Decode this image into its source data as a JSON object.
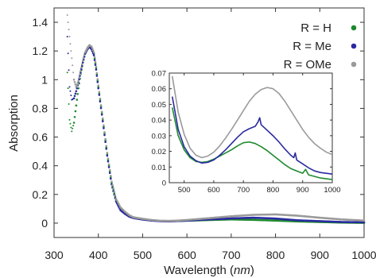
{
  "chart_data": {
    "type": "scatter",
    "xlabel": "Wavelength",
    "xlabel_unit": "nm",
    "ylabel": "Absorption",
    "xlim": [
      300,
      1000
    ],
    "ylim": [
      -0.1,
      1.5
    ],
    "xticks": [
      300,
      400,
      500,
      600,
      700,
      800,
      900,
      1000
    ],
    "yticks": [
      0,
      0.2,
      0.4,
      0.6,
      0.8,
      1,
      1.2,
      1.4
    ],
    "ytick_labels": [
      "0",
      "0.2",
      "0.4",
      "0.6",
      "0.8",
      "1",
      "1.2",
      "1.4"
    ],
    "legend_position": "top-right",
    "series": [
      {
        "name": "R = H",
        "color": "#1e8a2e",
        "x": [
          330,
          335,
          340,
          345,
          350,
          355,
          360,
          365,
          370,
          375,
          380,
          385,
          390,
          395,
          400,
          410,
          420,
          430,
          440,
          450,
          460,
          470,
          480,
          500,
          520,
          540,
          560,
          580,
          600,
          650,
          700,
          750,
          800,
          850,
          900,
          950,
          1000
        ],
        "y": [
          1.05,
          0.72,
          0.64,
          0.7,
          0.82,
          0.94,
          1.04,
          1.12,
          1.18,
          1.22,
          1.24,
          1.22,
          1.18,
          1.08,
          0.95,
          0.72,
          0.48,
          0.28,
          0.16,
          0.1,
          0.07,
          0.05,
          0.04,
          0.03,
          0.02,
          0.015,
          0.014,
          0.015,
          0.017,
          0.022,
          0.026,
          0.023,
          0.018,
          0.012,
          0.008,
          0.004,
          0.002
        ]
      },
      {
        "name": "R = Me",
        "color": "#2a2aa0",
        "x": [
          330,
          335,
          340,
          345,
          350,
          355,
          360,
          365,
          370,
          375,
          380,
          385,
          390,
          395,
          400,
          410,
          420,
          430,
          440,
          450,
          460,
          470,
          480,
          500,
          520,
          540,
          560,
          580,
          600,
          650,
          700,
          750,
          800,
          850,
          900,
          950,
          1000
        ],
        "y": [
          1.3,
          0.95,
          0.86,
          0.87,
          0.92,
          0.98,
          1.05,
          1.12,
          1.18,
          1.21,
          1.23,
          1.21,
          1.17,
          1.07,
          0.94,
          0.71,
          0.47,
          0.27,
          0.15,
          0.09,
          0.065,
          0.045,
          0.035,
          0.025,
          0.018,
          0.014,
          0.013,
          0.015,
          0.018,
          0.026,
          0.033,
          0.038,
          0.032,
          0.02,
          0.014,
          0.008,
          0.006
        ]
      },
      {
        "name": "R = OMe",
        "color": "#9a9a9a",
        "x": [
          330,
          335,
          340,
          345,
          350,
          355,
          360,
          365,
          370,
          375,
          380,
          385,
          390,
          395,
          400,
          410,
          420,
          430,
          440,
          450,
          460,
          470,
          480,
          500,
          520,
          540,
          560,
          580,
          600,
          650,
          700,
          750,
          800,
          850,
          900,
          950,
          1000
        ],
        "y": [
          1.45,
          1.3,
          1.15,
          1.0,
          0.95,
          0.99,
          1.06,
          1.13,
          1.19,
          1.22,
          1.24,
          1.23,
          1.19,
          1.09,
          0.96,
          0.73,
          0.49,
          0.29,
          0.17,
          0.11,
          0.08,
          0.055,
          0.04,
          0.03,
          0.022,
          0.017,
          0.016,
          0.018,
          0.022,
          0.035,
          0.048,
          0.058,
          0.061,
          0.052,
          0.038,
          0.026,
          0.018
        ]
      }
    ],
    "inset": {
      "xlim": [
        450,
        1000
      ],
      "ylim": [
        0,
        0.07
      ],
      "xticks": [
        500,
        600,
        700,
        800,
        900,
        1000
      ],
      "yticks": [
        0,
        0.01,
        0.02,
        0.03,
        0.04,
        0.05,
        0.06,
        0.07
      ],
      "series": [
        {
          "name": "R = H",
          "x": [
            460,
            480,
            500,
            520,
            540,
            560,
            580,
            600,
            620,
            640,
            660,
            680,
            700,
            720,
            740,
            760,
            780,
            800,
            820,
            840,
            860,
            880,
            900,
            910,
            920,
            940,
            960,
            980,
            1000
          ],
          "y": [
            0.048,
            0.03,
            0.021,
            0.016,
            0.0135,
            0.013,
            0.0135,
            0.015,
            0.017,
            0.019,
            0.021,
            0.0235,
            0.0255,
            0.026,
            0.025,
            0.023,
            0.0205,
            0.0175,
            0.0145,
            0.0115,
            0.009,
            0.0075,
            0.006,
            0.0085,
            0.005,
            0.004,
            0.003,
            0.0025,
            0.002
          ]
        },
        {
          "name": "R = Me",
          "x": [
            460,
            480,
            500,
            520,
            540,
            560,
            580,
            600,
            620,
            640,
            660,
            680,
            700,
            720,
            740,
            750,
            755,
            760,
            780,
            800,
            820,
            840,
            860,
            870,
            875,
            880,
            900,
            920,
            940,
            960,
            980,
            1000
          ],
          "y": [
            0.055,
            0.034,
            0.023,
            0.017,
            0.014,
            0.0125,
            0.013,
            0.0145,
            0.0175,
            0.021,
            0.025,
            0.029,
            0.0325,
            0.0345,
            0.036,
            0.039,
            0.0415,
            0.037,
            0.0335,
            0.03,
            0.026,
            0.0215,
            0.0175,
            0.016,
            0.019,
            0.0145,
            0.012,
            0.0095,
            0.0075,
            0.0065,
            0.006,
            0.0055
          ]
        },
        {
          "name": "R = OMe",
          "x": [
            460,
            480,
            500,
            520,
            540,
            560,
            580,
            600,
            620,
            640,
            660,
            680,
            700,
            720,
            740,
            760,
            780,
            800,
            820,
            840,
            860,
            880,
            900,
            920,
            940,
            960,
            980,
            1000
          ],
          "y": [
            0.068,
            0.045,
            0.031,
            0.022,
            0.0175,
            0.016,
            0.017,
            0.0195,
            0.0235,
            0.0285,
            0.034,
            0.04,
            0.046,
            0.052,
            0.0565,
            0.0595,
            0.0608,
            0.06,
            0.057,
            0.052,
            0.046,
            0.04,
            0.034,
            0.029,
            0.025,
            0.022,
            0.0195,
            0.018
          ]
        }
      ]
    }
  }
}
